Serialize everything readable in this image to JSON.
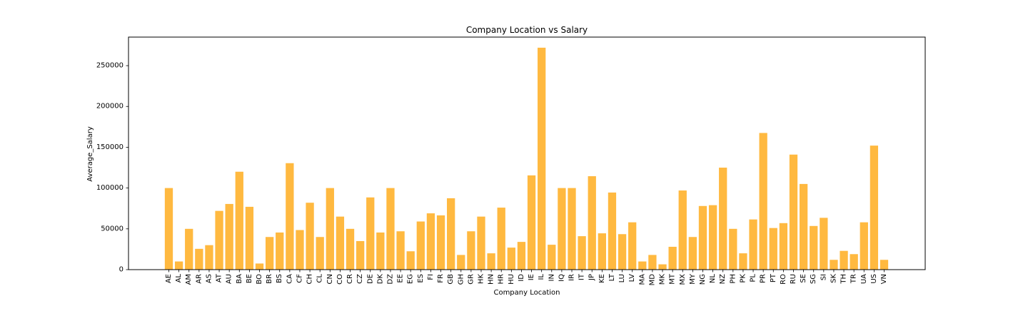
{
  "chart_data": {
    "type": "bar",
    "title": "Company Location vs Salary",
    "xlabel": "Company Location",
    "ylabel": "Average_Salary",
    "ylim": [
      0,
      285000
    ],
    "yticks": [
      0,
      50000,
      100000,
      150000,
      200000,
      250000
    ],
    "bar_color": "#FFB940",
    "grid": false,
    "categories": [
      "AE",
      "AL",
      "AM",
      "AR",
      "AS",
      "AT",
      "AU",
      "BA",
      "BE",
      "BO",
      "BR",
      "BS",
      "CA",
      "CF",
      "CH",
      "CL",
      "CN",
      "CO",
      "CR",
      "CZ",
      "DE",
      "DK",
      "DZ",
      "EE",
      "EG",
      "ES",
      "FI",
      "FR",
      "GB",
      "GH",
      "GR",
      "HK",
      "HN",
      "HR",
      "HU",
      "ID",
      "IE",
      "IL",
      "IN",
      "IQ",
      "IR",
      "IT",
      "JP",
      "KE",
      "LT",
      "LU",
      "LV",
      "MA",
      "MD",
      "MK",
      "MT",
      "MX",
      "MY",
      "NG",
      "NL",
      "NZ",
      "PH",
      "PK",
      "PL",
      "PR",
      "PT",
      "RO",
      "RU",
      "SE",
      "SG",
      "SI",
      "SK",
      "TH",
      "TR",
      "UA",
      "US",
      "VN"
    ],
    "values": [
      100000,
      10000,
      50000,
      25500,
      30000,
      72000,
      80500,
      120000,
      77000,
      7500,
      40000,
      45500,
      130500,
      48500,
      82000,
      40000,
      100000,
      65000,
      50000,
      35000,
      88500,
      45500,
      100000,
      47000,
      22500,
      59000,
      69000,
      66500,
      87500,
      18000,
      47000,
      65000,
      20000,
      76000,
      27000,
      34000,
      115500,
      272000,
      30500,
      100000,
      100000,
      41000,
      114500,
      44500,
      94500,
      43500,
      58000,
      10000,
      18000,
      6500,
      28000,
      97000,
      40000,
      78000,
      79000,
      125000,
      50000,
      20000,
      61500,
      167500,
      51000,
      57000,
      141000,
      105000,
      53500,
      63500,
      12000,
      23000,
      19000,
      58000,
      152000,
      12000
    ]
  }
}
